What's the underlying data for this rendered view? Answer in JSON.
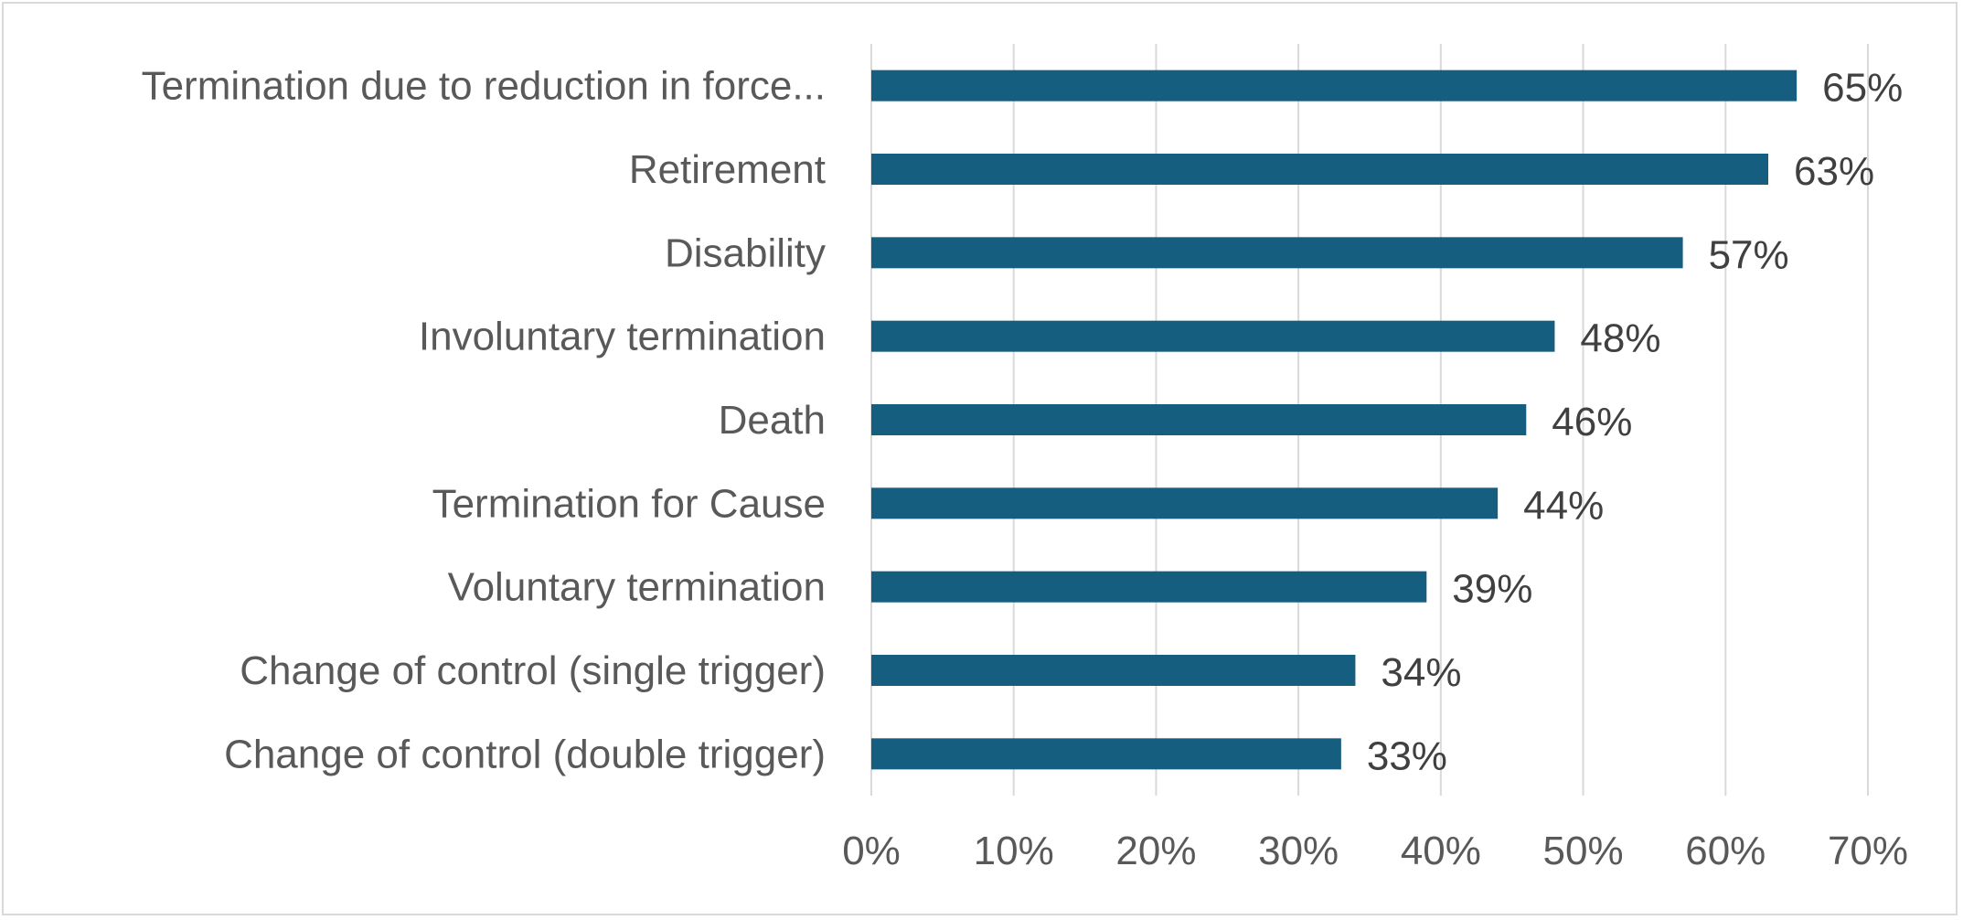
{
  "chart_data": {
    "type": "bar",
    "orientation": "horizontal",
    "title": "",
    "xlabel": "",
    "ylabel": "",
    "categories": [
      "Termination due to reduction in force...",
      "Retirement",
      "Disability",
      "Involuntary termination",
      "Death",
      "Termination for Cause",
      "Voluntary termination",
      "Change of control (single trigger)",
      "Change of control (double trigger)"
    ],
    "values": [
      65,
      63,
      57,
      48,
      46,
      44,
      39,
      34,
      33
    ],
    "value_labels": [
      "65%",
      "63%",
      "57%",
      "48%",
      "46%",
      "44%",
      "39%",
      "34%",
      "33%"
    ],
    "xlim": [
      0,
      70
    ],
    "xticks": [
      0,
      10,
      20,
      30,
      40,
      50,
      60,
      70
    ],
    "xtick_labels": [
      "0%",
      "10%",
      "20%",
      "30%",
      "40%",
      "50%",
      "60%",
      "70%"
    ],
    "grid": "vertical",
    "legend": "none",
    "colors": {
      "bar": "#155e80",
      "grid": "#d9d9d9",
      "category_text": "#595959",
      "tick_text": "#595959",
      "data_label_text": "#404040",
      "border": "#d9d9d9"
    }
  }
}
